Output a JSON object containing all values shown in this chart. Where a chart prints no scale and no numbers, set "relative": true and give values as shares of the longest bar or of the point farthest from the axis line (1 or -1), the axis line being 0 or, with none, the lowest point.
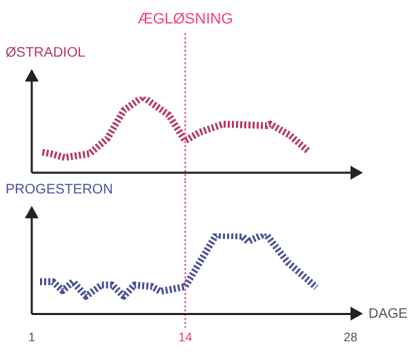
{
  "chart_data": [
    {
      "type": "line",
      "relative": true,
      "xlim": [
        1,
        28
      ],
      "xticks": [
        1,
        14,
        28
      ],
      "tick_labels": false,
      "grid": false,
      "legend": false,
      "marker": "none",
      "line_style": "dotted",
      "ref_lines": [
        {
          "axis": "x",
          "value": 14,
          "label": "ÆGLØSNING",
          "color": "#f0407a",
          "line_style": "dotted"
        }
      ],
      "series": [
        {
          "name": "ØSTRADIOL",
          "color": "#b5385f",
          "x": [
            1.9,
            2.6,
            3.8,
            5.9,
            7.4,
            8.8,
            10.4,
            12.6,
            14,
            15.2,
            17.2,
            20.9,
            21.2,
            22.9,
            24.5
          ],
          "values": [
            0.27,
            0.25,
            0.2,
            0.25,
            0.45,
            0.82,
            1,
            0.76,
            0.42,
            0.53,
            0.64,
            0.62,
            0.64,
            0.49,
            0.27
          ]
        }
      ]
    },
    {
      "type": "line",
      "relative": true,
      "xlim": [
        1,
        28
      ],
      "xticks": [
        1,
        14,
        28
      ],
      "tick_labels": "x",
      "xlabel": "DAGE",
      "grid": false,
      "legend": false,
      "marker": "none",
      "line_style": "dotted",
      "ref_lines": [
        {
          "axis": "x",
          "value": 14,
          "label": null,
          "color": "#f0407a",
          "line_style": "dotted"
        }
      ],
      "series": [
        {
          "name": "PROGESTERON",
          "color": "#4a4f9a",
          "x": [
            1.7,
            2.8,
            3.6,
            4.5,
            5.6,
            6.9,
            7.8,
            8.8,
            9.7,
            11.2,
            11.9,
            14,
            16.6,
            18.8,
            19.3,
            20.8,
            22.7,
            25.1
          ],
          "values": [
            0.4,
            0.4,
            0.29,
            0.4,
            0.22,
            0.36,
            0.36,
            0.22,
            0.36,
            0.34,
            0.28,
            0.34,
            0.98,
            0.97,
            0.9,
            1,
            0.64,
            0.33
          ]
        }
      ]
    }
  ]
}
